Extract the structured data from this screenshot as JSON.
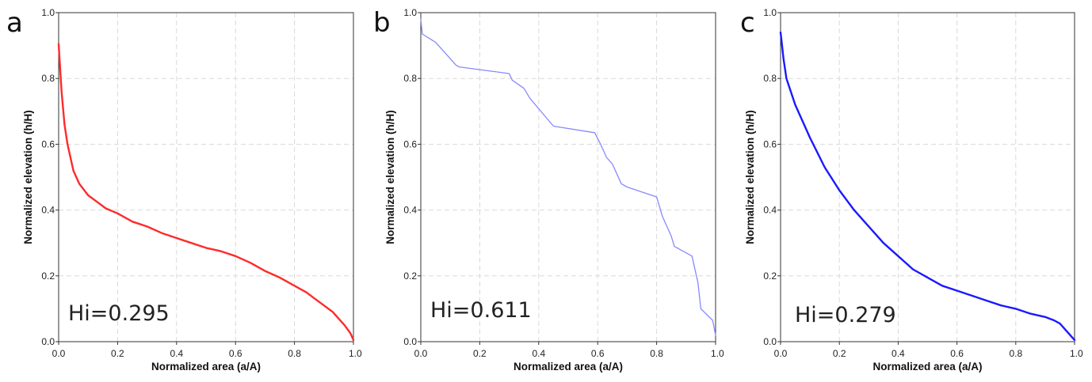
{
  "chart_data": [
    {
      "type": "line",
      "panel": "a",
      "xlabel": "Normalized area (a/A)",
      "ylabel": "Normalized elevation (h/H)",
      "xlim": [
        0,
        1
      ],
      "ylim": [
        0,
        1
      ],
      "x_ticks": [
        "0.0",
        "0.2",
        "0.4",
        "0.6",
        "0.8",
        "1.0"
      ],
      "y_ticks": [
        "0.0",
        "0.2",
        "0.4",
        "0.6",
        "0.8",
        "1.0"
      ],
      "grid": true,
      "annotation": "Hi=0.295",
      "color": "#ff2a2a",
      "series": [
        {
          "x": [
            0,
            0.005,
            0.01,
            0.02,
            0.03,
            0.05,
            0.07,
            0.1,
            0.13,
            0.16,
            0.2,
            0.25,
            0.3,
            0.35,
            0.4,
            0.45,
            0.5,
            0.55,
            0.6,
            0.65,
            0.7,
            0.75,
            0.8,
            0.84,
            0.87,
            0.9,
            0.93,
            0.95,
            0.97,
            0.99,
            1.0
          ],
          "y": [
            0.905,
            0.83,
            0.76,
            0.66,
            0.6,
            0.52,
            0.48,
            0.445,
            0.425,
            0.405,
            0.39,
            0.365,
            0.35,
            0.33,
            0.315,
            0.3,
            0.285,
            0.275,
            0.26,
            0.24,
            0.215,
            0.195,
            0.17,
            0.15,
            0.13,
            0.11,
            0.09,
            0.07,
            0.05,
            0.025,
            0.005
          ]
        }
      ]
    },
    {
      "type": "line",
      "panel": "b",
      "xlabel": "Normalized area (a/A)",
      "ylabel": "Normalized elevation (h/H)",
      "xlim": [
        0,
        1
      ],
      "ylim": [
        0,
        1
      ],
      "x_ticks": [
        "0.0",
        "0.2",
        "0.4",
        "0.6",
        "0.8",
        "1.0"
      ],
      "y_ticks": [
        "0.0",
        "0.2",
        "0.4",
        "0.6",
        "0.8",
        "1.0"
      ],
      "grid": true,
      "annotation": "Hi=0.611",
      "color": "#8888ff",
      "series": [
        {
          "x": [
            0,
            0.005,
            0.05,
            0.09,
            0.12,
            0.13,
            0.3,
            0.31,
            0.35,
            0.37,
            0.45,
            0.59,
            0.61,
            0.63,
            0.65,
            0.68,
            0.7,
            0.8,
            0.82,
            0.85,
            0.86,
            0.92,
            0.94,
            0.95,
            0.99,
            1.0
          ],
          "y": [
            0.98,
            0.935,
            0.91,
            0.87,
            0.84,
            0.835,
            0.815,
            0.795,
            0.77,
            0.74,
            0.655,
            0.635,
            0.6,
            0.56,
            0.54,
            0.48,
            0.47,
            0.44,
            0.38,
            0.32,
            0.29,
            0.26,
            0.18,
            0.1,
            0.065,
            0.02
          ]
        }
      ]
    },
    {
      "type": "line",
      "panel": "c",
      "xlabel": "Normalized area (a/A)",
      "ylabel": "Normalized elevation (h/H)",
      "xlim": [
        0,
        1
      ],
      "ylim": [
        0,
        1
      ],
      "x_ticks": [
        "0.0",
        "0.2",
        "0.4",
        "0.6",
        "0.8",
        "1.0"
      ],
      "y_ticks": [
        "0.0",
        "0.2",
        "0.4",
        "0.6",
        "0.8",
        "1.0"
      ],
      "grid": true,
      "annotation": "Hi=0.279",
      "color": "#1a1aff",
      "series": [
        {
          "x": [
            0,
            0.005,
            0.01,
            0.02,
            0.05,
            0.1,
            0.15,
            0.2,
            0.25,
            0.3,
            0.35,
            0.4,
            0.45,
            0.5,
            0.55,
            0.6,
            0.65,
            0.7,
            0.75,
            0.8,
            0.85,
            0.9,
            0.93,
            0.95,
            0.97,
            0.99,
            1.0
          ],
          "y": [
            0.94,
            0.9,
            0.86,
            0.8,
            0.72,
            0.62,
            0.53,
            0.46,
            0.4,
            0.35,
            0.3,
            0.26,
            0.22,
            0.195,
            0.17,
            0.155,
            0.14,
            0.125,
            0.11,
            0.1,
            0.085,
            0.075,
            0.065,
            0.055,
            0.035,
            0.015,
            0.005
          ]
        }
      ]
    }
  ]
}
